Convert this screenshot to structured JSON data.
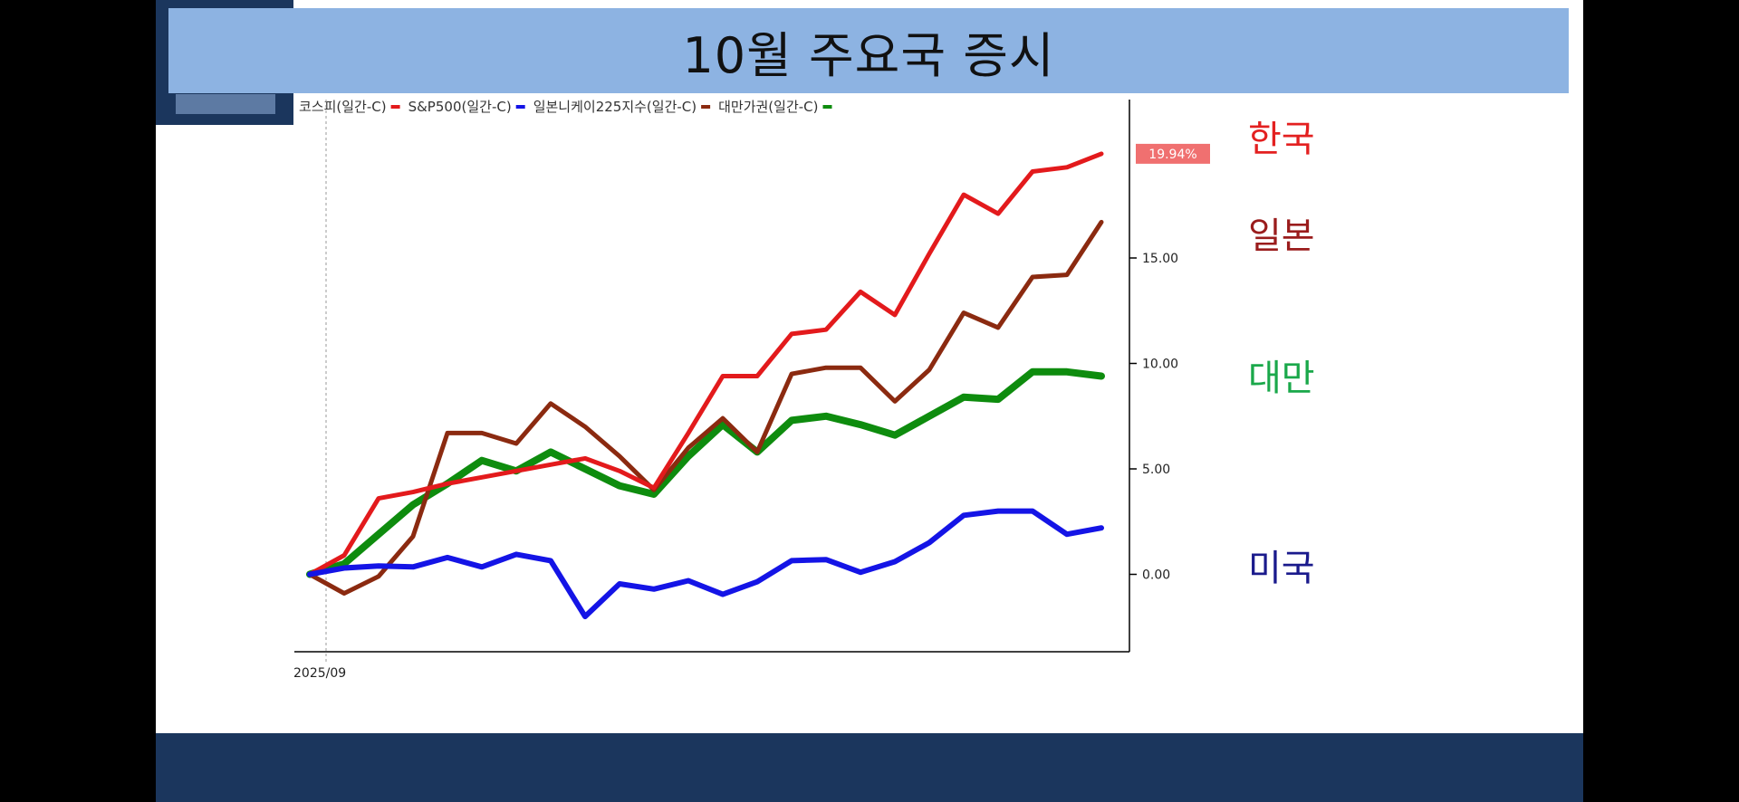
{
  "slide": {
    "title": "10월 주요국 증시"
  },
  "labels": {
    "korea": "한국",
    "japan": "일본",
    "taiwan": "대만",
    "usa": "미국"
  },
  "colors": {
    "korea": "#e31a1c",
    "japan": "#8b2a10",
    "taiwan": "#0e8c0e",
    "usa": "#1414e6",
    "title_bar": "#8db3e2",
    "navy": "#1b365d",
    "badge": "#f07070",
    "label_korea": "#e32020",
    "label_japan": "#9a1c1c",
    "label_taiwan": "#1aa84a",
    "label_usa": "#1a1a8c"
  },
  "chart_data": {
    "type": "line",
    "x_label": "2025/09",
    "ylim": [
      -3.7,
      22.5
    ],
    "yticks": [
      {
        "value": 0,
        "label": "0.00"
      },
      {
        "value": 5,
        "label": "5.00"
      },
      {
        "value": 10,
        "label": "10.00"
      },
      {
        "value": 15,
        "label": "15.00"
      }
    ],
    "value_badge": {
      "value": 19.94,
      "label": "19.94%"
    },
    "legend": [
      {
        "text": "코스피(일간-C)",
        "color": "#e31a1c"
      },
      {
        "text": "S&P500(일간-C)",
        "color": "#1414e6"
      },
      {
        "text": "일본니케이225지수(일간-C)",
        "color": "#8b2a10"
      },
      {
        "text": "대만가권(일간-C)",
        "color": "#0e8c0e"
      }
    ],
    "series": [
      {
        "name": "대만가권(일간-C)",
        "key": "taiwan",
        "width": 8,
        "values": [
          0,
          0.5,
          1.9,
          3.3,
          4.3,
          5.4,
          4.9,
          5.8,
          5.0,
          4.2,
          3.8,
          5.6,
          7.1,
          5.8,
          7.3,
          7.5,
          7.1,
          6.6,
          7.5,
          8.4,
          8.3,
          9.6,
          9.6,
          9.4
        ]
      },
      {
        "name": "일본니케이225지수(일간-C)",
        "key": "japan",
        "width": 5,
        "values": [
          0,
          -0.9,
          -0.1,
          1.8,
          6.7,
          6.7,
          6.2,
          8.1,
          7.0,
          5.6,
          4.0,
          6.0,
          7.4,
          5.8,
          9.5,
          9.8,
          9.8,
          8.2,
          9.7,
          12.4,
          11.7,
          14.1,
          14.2,
          16.7
        ]
      },
      {
        "name": "코스피(일간-C)",
        "key": "korea",
        "width": 5,
        "values": [
          0,
          0.9,
          3.6,
          3.9,
          4.3,
          4.6,
          4.9,
          5.2,
          5.5,
          4.9,
          4.1,
          6.7,
          9.4,
          9.4,
          11.4,
          11.6,
          13.4,
          12.3,
          15.2,
          18.0,
          17.1,
          19.1,
          19.3,
          19.94
        ]
      },
      {
        "name": "S&P500(일간-C)",
        "key": "usa",
        "width": 6,
        "values": [
          0,
          0.3,
          0.4,
          0.35,
          0.8,
          0.35,
          0.95,
          0.65,
          -2.0,
          -0.45,
          -0.7,
          -0.3,
          -0.95,
          -0.35,
          0.65,
          0.7,
          0.1,
          0.6,
          1.5,
          2.8,
          3.0,
          3.0,
          1.9,
          2.2
        ]
      }
    ]
  }
}
